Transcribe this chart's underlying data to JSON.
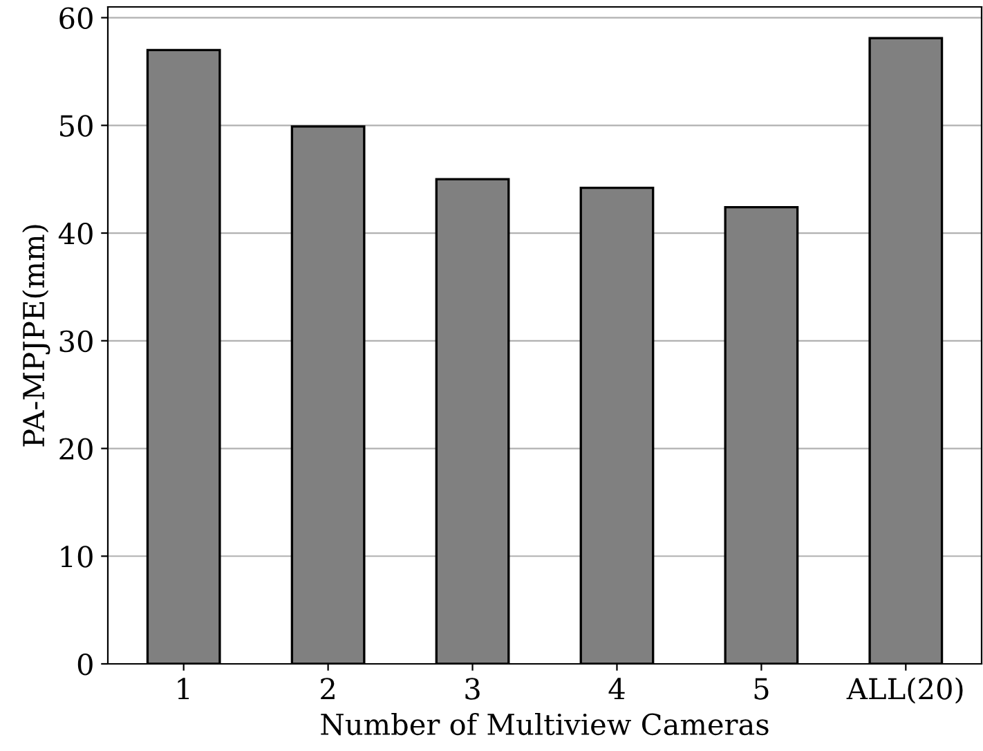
{
  "chart_data": {
    "type": "bar",
    "xlabel": "Number of Multiview Cameras",
    "ylabel": "PA-MPJPE(mm)",
    "categories": [
      "1",
      "2",
      "3",
      "4",
      "5",
      "ALL(20)"
    ],
    "values": [
      57,
      49.9,
      45,
      44.2,
      42.4,
      58.1
    ],
    "color": "#808080",
    "ylim": [
      0,
      61
    ],
    "yticks": [
      0,
      10,
      20,
      30,
      40,
      50,
      60
    ],
    "grid": "y"
  }
}
